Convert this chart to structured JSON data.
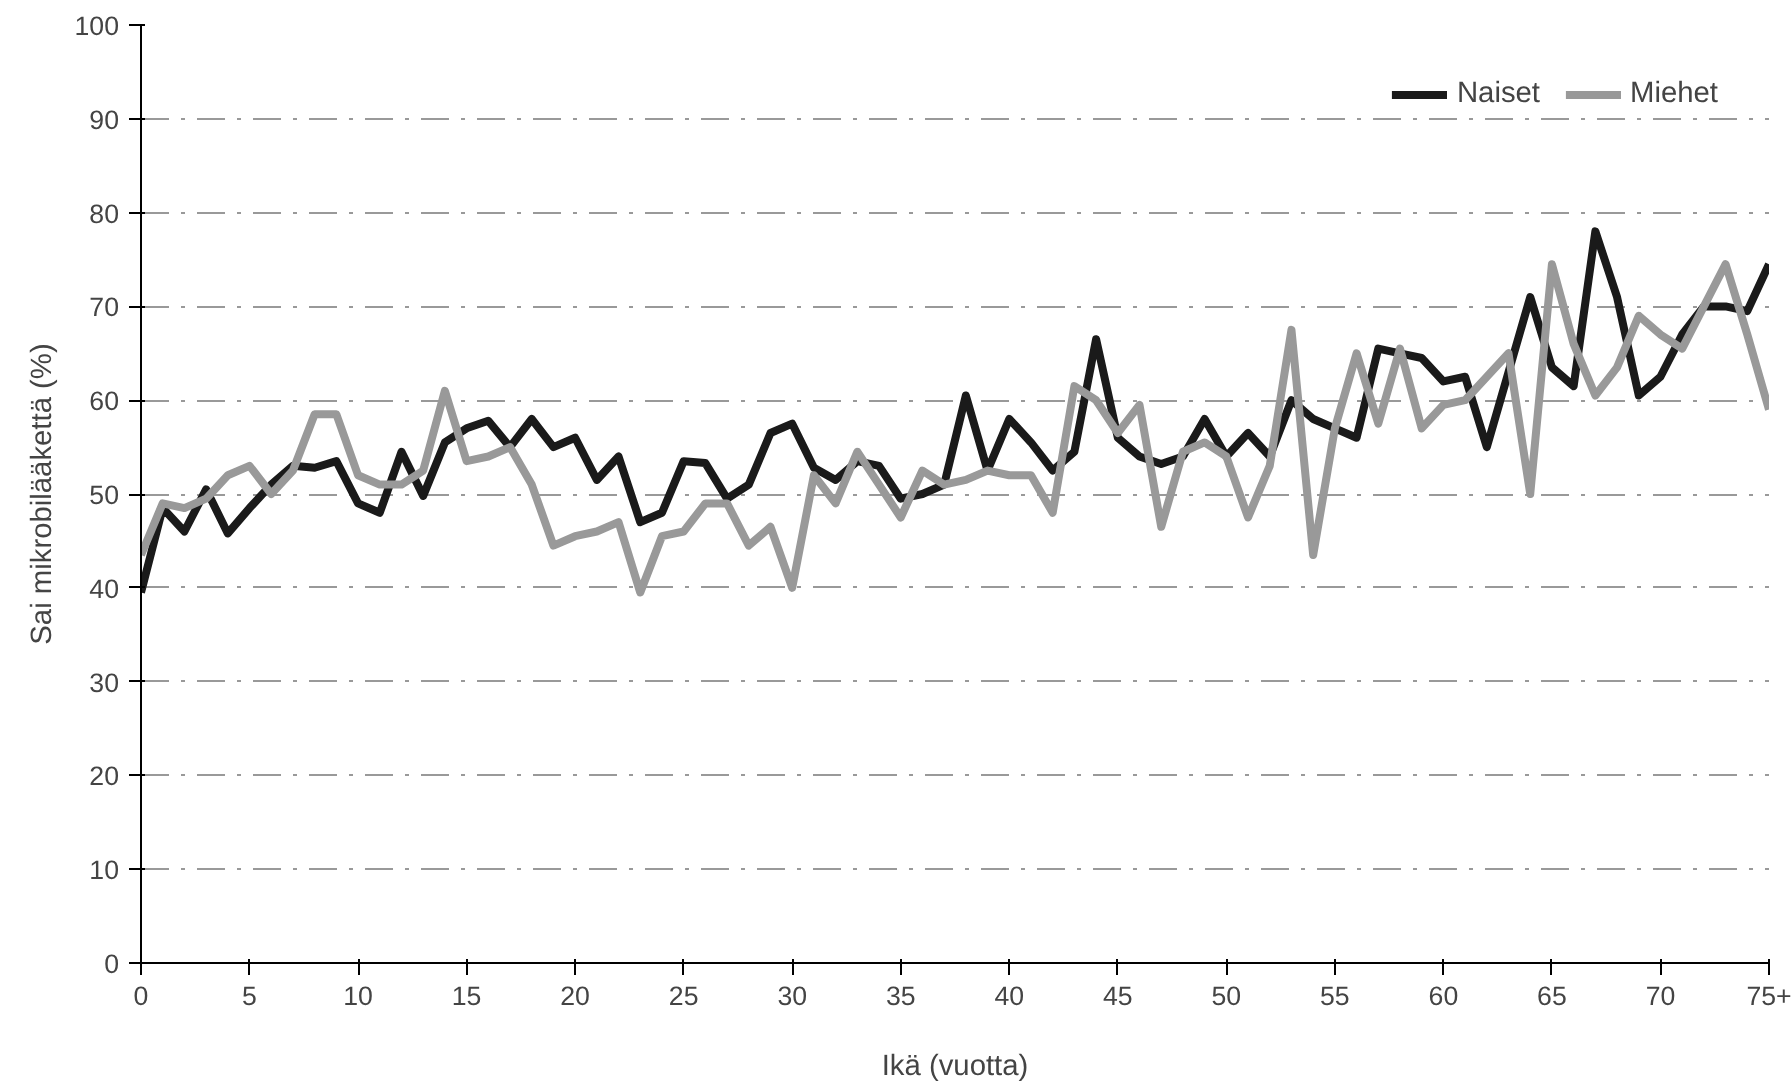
{
  "chart_data": {
    "type": "line",
    "xlabel": "Ikä (vuotta)",
    "ylabel": "Sai mikrobilääkettä (%)",
    "x": [
      0,
      1,
      2,
      3,
      4,
      5,
      6,
      7,
      8,
      9,
      10,
      11,
      12,
      13,
      14,
      15,
      16,
      17,
      18,
      19,
      20,
      21,
      22,
      23,
      24,
      25,
      26,
      27,
      28,
      29,
      30,
      31,
      32,
      33,
      34,
      35,
      36,
      37,
      38,
      39,
      40,
      41,
      42,
      43,
      44,
      45,
      46,
      47,
      48,
      49,
      50,
      51,
      52,
      53,
      54,
      55,
      56,
      57,
      58,
      59,
      60,
      61,
      62,
      63,
      64,
      65,
      66,
      67,
      68,
      69,
      70,
      71,
      72,
      73,
      74,
      75
    ],
    "series": [
      {
        "name": "Naiset",
        "color": "#1a1a1a",
        "values": [
          39.5,
          48.5,
          46,
          50.5,
          45.8,
          48.5,
          51,
          53,
          52.8,
          53.5,
          49,
          48,
          54.5,
          49.8,
          55.5,
          57,
          57.8,
          55,
          58,
          55,
          56,
          51.5,
          54,
          47,
          48,
          53.5,
          53.3,
          49.5,
          51,
          56.5,
          57.5,
          52.8,
          51.5,
          53.5,
          53,
          49.5,
          50,
          51,
          60.5,
          52.5,
          58,
          55.5,
          52.5,
          54.5,
          66.5,
          56,
          54,
          53.2,
          54,
          58,
          54,
          56.5,
          54,
          60,
          58,
          57,
          56,
          65.5,
          65,
          64.5,
          62,
          62.5,
          55,
          63,
          71,
          63.5,
          61.5,
          78,
          71,
          60.5,
          62.5,
          67,
          70,
          70,
          69.5,
          74.5
        ]
      },
      {
        "name": "Miehet",
        "color": "#999999",
        "values": [
          43.5,
          49,
          48.5,
          49.5,
          52,
          53,
          50,
          52.5,
          58.5,
          58.5,
          52,
          51,
          51,
          52.5,
          61,
          53.5,
          54,
          55,
          51,
          44.5,
          45.5,
          46,
          47,
          39.5,
          45.5,
          46,
          49,
          49,
          44.5,
          46.5,
          40,
          52,
          49,
          54.5,
          51,
          47.5,
          52.5,
          51,
          51.5,
          52.5,
          52,
          52,
          48,
          61.5,
          60,
          56.5,
          59.5,
          46.5,
          54.5,
          55.5,
          54,
          47.5,
          53,
          67.5,
          43.5,
          57,
          65,
          57.5,
          65.5,
          57,
          59.5,
          60,
          62.5,
          65,
          50,
          74.5,
          66,
          60.5,
          63.5,
          69,
          67,
          65.5,
          70,
          74.5,
          67,
          59
        ]
      }
    ],
    "xlim": [
      0,
      75
    ],
    "ylim": [
      0,
      100
    ],
    "xticks": [
      0,
      5,
      10,
      15,
      20,
      25,
      30,
      35,
      40,
      45,
      50,
      55,
      60,
      65,
      70,
      {
        "value": 75,
        "label": "75+"
      }
    ],
    "yticks": [
      0,
      10,
      20,
      30,
      40,
      50,
      60,
      70,
      80,
      90,
      100
    ],
    "grid": "y",
    "legend": "top right",
    "marker": "none",
    "line_style": "solid"
  }
}
